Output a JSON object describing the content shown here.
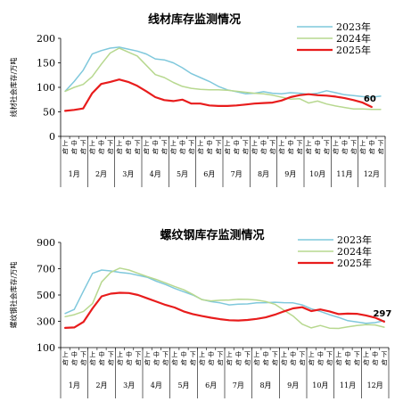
{
  "chart_data": [
    {
      "type": "line",
      "title": "线材库存监测情况",
      "ylabel": "线材社会库存/万吨",
      "ylim": [
        0,
        200
      ],
      "yticks": [
        0,
        50,
        100,
        150,
        200
      ],
      "x_ticks": [
        "上旬",
        "中旬",
        "下旬",
        "上旬",
        "中旬",
        "下旬",
        "上旬",
        "中旬",
        "下旬",
        "上旬",
        "中旬",
        "下旬",
        "上旬",
        "中旬",
        "下旬",
        "上旬",
        "中旬",
        "下旬",
        "上旬",
        "中旬",
        "下旬",
        "上旬",
        "中旬",
        "下旬",
        "上旬",
        "中旬",
        "下旬",
        "上旬",
        "中旬",
        "下旬",
        "上旬",
        "中旬",
        "下旬",
        "上旬",
        "中旬",
        "下旬"
      ],
      "months": [
        "1月",
        "2月",
        "3月",
        "4月",
        "5月",
        "6月",
        "7月",
        "8月",
        "9月",
        "10月",
        "11月",
        "12月"
      ],
      "series": [
        {
          "name": "2023年",
          "color": "#7fc8dc",
          "width": 1.5,
          "values": [
            92,
            112,
            135,
            168,
            175,
            180,
            182,
            178,
            174,
            168,
            158,
            156,
            150,
            140,
            128,
            120,
            112,
            102,
            95,
            91,
            87,
            88,
            91,
            88,
            87,
            89,
            88,
            86,
            88,
            93,
            89,
            85,
            83,
            81,
            80,
            82
          ]
        },
        {
          "name": "2024年",
          "color": "#b7d88f",
          "width": 1.5,
          "values": [
            92,
            100,
            106,
            122,
            147,
            170,
            180,
            172,
            164,
            145,
            126,
            120,
            110,
            102,
            98,
            96,
            95,
            95,
            94,
            92,
            90,
            88,
            87,
            84,
            80,
            76,
            77,
            68,
            72,
            66,
            62,
            59,
            56,
            56,
            55,
            55
          ]
        },
        {
          "name": "2025年",
          "color": "#e81c1c",
          "width": 2.2,
          "values": [
            52,
            54,
            57,
            88,
            107,
            111,
            116,
            111,
            103,
            92,
            80,
            74,
            72,
            75,
            67,
            67,
            63,
            62,
            62,
            63,
            65,
            67,
            68,
            69,
            73,
            80,
            84,
            86,
            84,
            83,
            81,
            78,
            74,
            69,
            60
          ]
        }
      ],
      "end_label": "60"
    },
    {
      "type": "line",
      "title": "螺纹钢库存监测情况",
      "ylabel": "螺纹钢社会库存/万吨",
      "ylim": [
        100,
        900
      ],
      "yticks": [
        100,
        300,
        500,
        700,
        900
      ],
      "x_ticks": [
        "上旬",
        "中旬",
        "下旬",
        "上旬",
        "中旬",
        "下旬",
        "上旬",
        "中旬",
        "下旬",
        "上旬",
        "中旬",
        "下旬",
        "上旬",
        "中旬",
        "下旬",
        "上旬",
        "中旬",
        "下旬",
        "上旬",
        "中旬",
        "下旬",
        "上旬",
        "中旬",
        "下旬",
        "上旬",
        "中旬",
        "下旬",
        "上旬",
        "中旬",
        "下旬",
        "上旬",
        "中旬",
        "下旬",
        "上旬",
        "中旬",
        "下旬"
      ],
      "months": [
        "1月",
        "2月",
        "3月",
        "4月",
        "5月",
        "6月",
        "7月",
        "8月",
        "9月",
        "10月",
        "11月",
        "12月"
      ],
      "series": [
        {
          "name": "2023年",
          "color": "#7fc8dc",
          "width": 1.5,
          "values": [
            360,
            390,
            530,
            665,
            690,
            683,
            672,
            665,
            650,
            635,
            605,
            580,
            550,
            525,
            500,
            466,
            450,
            440,
            425,
            430,
            432,
            440,
            442,
            445,
            442,
            440,
            425,
            395,
            375,
            350,
            330,
            305,
            295,
            285,
            290,
            305
          ]
        },
        {
          "name": "2024年",
          "color": "#b7d88f",
          "width": 1.5,
          "values": [
            335,
            350,
            375,
            435,
            600,
            672,
            705,
            690,
            665,
            640,
            618,
            592,
            565,
            540,
            505,
            465,
            455,
            460,
            462,
            468,
            467,
            462,
            450,
            430,
            385,
            340,
            278,
            250,
            268,
            248,
            246,
            258,
            268,
            274,
            272,
            255
          ]
        },
        {
          "name": "2025年",
          "color": "#e81c1c",
          "width": 2.2,
          "values": [
            250,
            253,
            295,
            398,
            490,
            510,
            517,
            515,
            500,
            475,
            450,
            425,
            405,
            375,
            355,
            340,
            327,
            316,
            308,
            306,
            310,
            318,
            330,
            350,
            375,
            398,
            407,
            378,
            390,
            375,
            355,
            358,
            357,
            345,
            328,
            297
          ]
        }
      ],
      "end_label": "297"
    }
  ]
}
